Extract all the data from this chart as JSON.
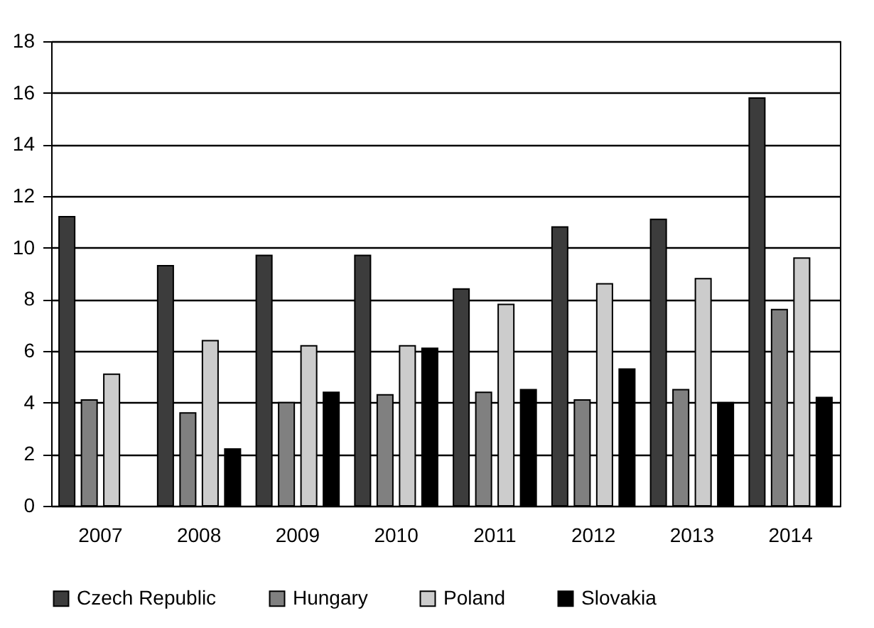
{
  "chart_data": {
    "type": "bar",
    "categories": [
      "2007",
      "2008",
      "2009",
      "2010",
      "2011",
      "2012",
      "2013",
      "2014"
    ],
    "series": [
      {
        "name": "Czech Republic",
        "color": "#3c3c3c",
        "values": [
          11.2,
          9.3,
          9.7,
          9.7,
          8.4,
          10.8,
          11.1,
          15.8
        ]
      },
      {
        "name": "Hungary",
        "color": "#808080",
        "values": [
          4.1,
          3.6,
          4.0,
          4.3,
          4.4,
          4.1,
          4.5,
          7.6
        ]
      },
      {
        "name": "Poland",
        "color": "#cccccc",
        "values": [
          5.1,
          6.4,
          6.2,
          6.2,
          7.8,
          8.6,
          8.8,
          9.6
        ]
      },
      {
        "name": "Slovakia",
        "color": "#000000",
        "values": [
          null,
          2.2,
          4.4,
          6.1,
          4.5,
          5.3,
          4.0,
          4.2
        ]
      }
    ],
    "ylim": [
      0,
      18
    ],
    "yticks": [
      0,
      2,
      4,
      6,
      8,
      10,
      12,
      14,
      16,
      18
    ],
    "grid": "y",
    "legend": "bottom"
  }
}
